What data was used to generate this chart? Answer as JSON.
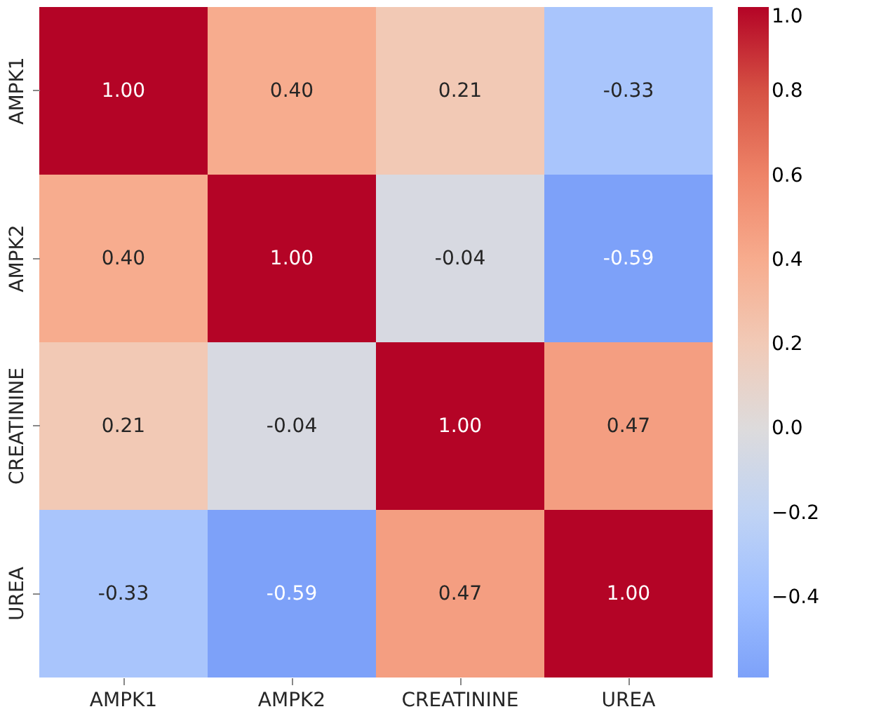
{
  "chart_data": {
    "type": "heatmap",
    "categories": [
      "AMPK1",
      "AMPK2",
      "CREATININE",
      "UREA"
    ],
    "y_categories": [
      "AMPK1",
      "AMPK2",
      "CREATININE",
      "UREA"
    ],
    "cells": [
      [
        1.0,
        0.4,
        0.21,
        -0.33
      ],
      [
        0.4,
        1.0,
        -0.04,
        -0.59
      ],
      [
        0.21,
        -0.04,
        1.0,
        0.47
      ],
      [
        -0.33,
        -0.59,
        0.47,
        1.0
      ]
    ],
    "clim": [
      -0.59,
      1.0
    ],
    "cticks": [
      {
        "value": -0.4,
        "label": "−0.4"
      },
      {
        "value": -0.2,
        "label": "−0.2"
      },
      {
        "value": 0.0,
        "label": "0.0"
      },
      {
        "value": 0.2,
        "label": "0.2"
      },
      {
        "value": 0.4,
        "label": "0.4"
      },
      {
        "value": 0.6,
        "label": "0.6"
      },
      {
        "value": 0.8,
        "label": "0.8"
      },
      {
        "value": 1.0,
        "label": "1.0"
      }
    ],
    "cell_labels": [
      [
        "1.00",
        "0.40",
        "0.21",
        "-0.33"
      ],
      [
        "0.40",
        "1.00",
        "-0.04",
        "-0.59"
      ],
      [
        "0.21",
        "-0.04",
        "1.00",
        "0.47"
      ],
      [
        "-0.33",
        "-0.59",
        "0.47",
        "1.00"
      ]
    ]
  }
}
